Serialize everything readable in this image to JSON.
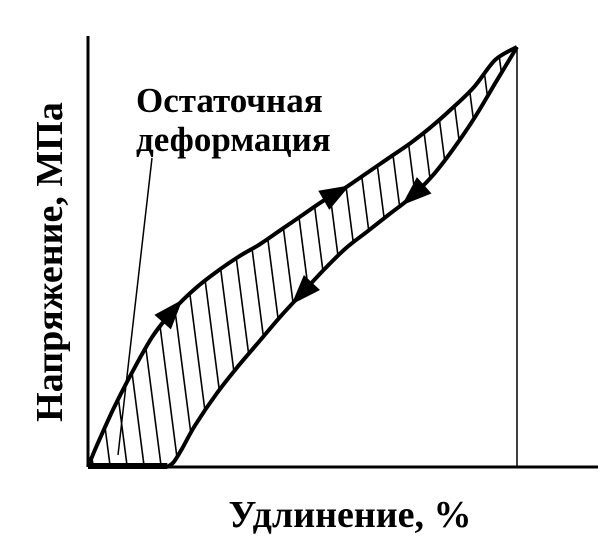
{
  "chart_data": {
    "type": "line",
    "title": "",
    "xlabel": "Удлинение, %",
    "ylabel": "Напряжение, МПа",
    "annotation": {
      "lines": [
        "Остаточная",
        "деформация"
      ]
    },
    "xlim": [
      0,
      10
    ],
    "ylim": [
      0,
      10
    ],
    "grid": false,
    "series": [
      {
        "x": [
          0.0,
          0.2,
          0.6,
          1.0,
          1.5,
          2.0,
          2.5,
          3.0,
          3.5,
          4.0,
          4.5,
          5.0,
          5.5,
          6.0,
          6.5,
          7.0,
          7.5,
          8.0,
          8.5,
          9.0,
          9.5,
          10.0
        ],
        "y": [
          0.0,
          0.5,
          1.4,
          2.2,
          3.1,
          3.75,
          4.25,
          4.65,
          5.0,
          5.3,
          5.65,
          6.0,
          6.35,
          6.65,
          7.0,
          7.35,
          7.7,
          8.1,
          8.55,
          9.05,
          9.7,
          10.0
        ]
      },
      {
        "x": [
          10.0,
          9.5,
          9.0,
          8.5,
          8.0,
          7.5,
          7.0,
          6.5,
          6.0,
          5.5,
          5.0,
          4.5,
          4.0,
          3.5,
          3.0,
          2.5,
          2.2,
          2.0,
          1.85
        ],
        "y": [
          10.0,
          9.15,
          8.3,
          7.55,
          6.9,
          6.4,
          6.0,
          5.6,
          5.2,
          4.7,
          4.15,
          3.6,
          3.0,
          2.4,
          1.75,
          1.0,
          0.45,
          0.12,
          0.0
        ]
      }
    ],
    "residual_strain_x": 1.85,
    "max_point": {
      "x": 10.0,
      "y": 10.0
    }
  }
}
